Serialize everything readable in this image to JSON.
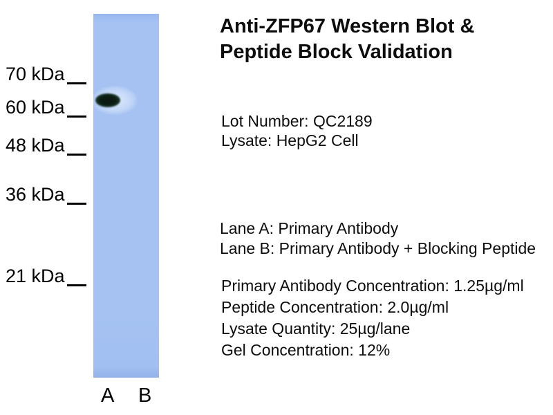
{
  "title": {
    "line1": "Anti-ZFP67 Western Blot &",
    "line2": "Peptide Block Validation"
  },
  "info": {
    "lot_number": "Lot Number: QC2189",
    "lysate": "Lysate: HepG2 Cell"
  },
  "lane_descriptions": {
    "lane_a": "Lane A: Primary Antibody",
    "lane_b": "Lane B: Primary Antibody + Blocking Peptide"
  },
  "conditions": {
    "primary_antibody_concentration": "Primary Antibody Concentration: 1.25µg/ml",
    "peptide_concentration": "Peptide Concentration: 2.0µg/ml",
    "lysate_quantity": "Lysate Quantity: 25µg/lane",
    "gel_concentration": "Gel Concentration: 12%"
  },
  "markers": [
    {
      "label": "70 kDa"
    },
    {
      "label": "60 kDa"
    },
    {
      "label": "48 kDa"
    },
    {
      "label": "36 kDa"
    },
    {
      "label": "21 kDa"
    }
  ],
  "lane_labels": {
    "a": "A",
    "b": "B"
  },
  "blot": {
    "band": {
      "present_in_lane": "A",
      "approx_position": "between 60 and 70 kDa"
    }
  },
  "colors": {
    "gel": "#a5c2f3",
    "band": "#0c1c12",
    "text": "#000000",
    "background": "#ffffff"
  }
}
